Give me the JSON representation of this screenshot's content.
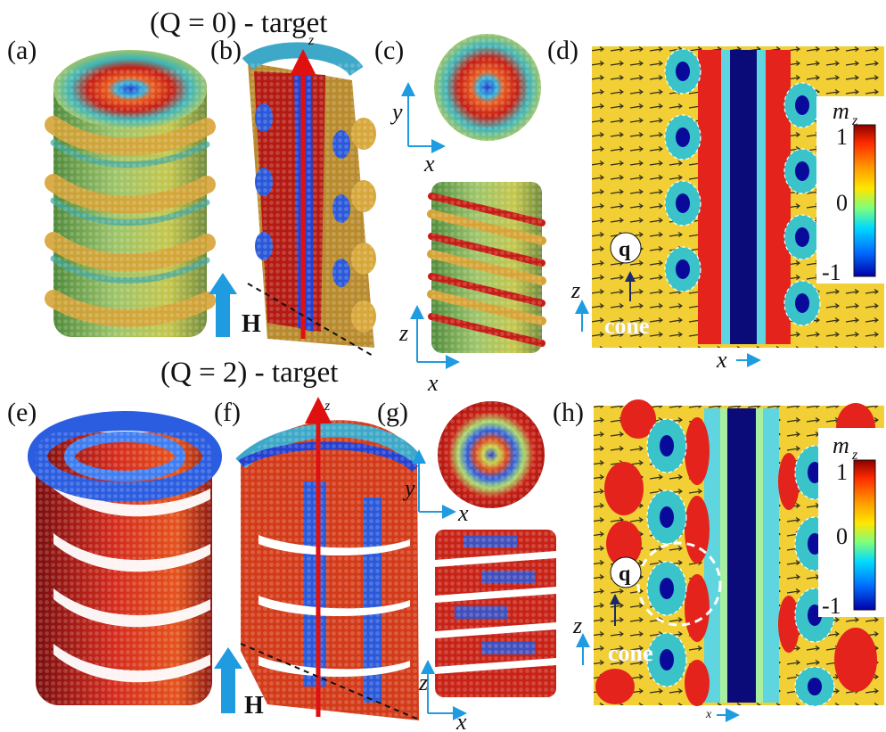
{
  "top_title": "(Q = 0) - target",
  "bottom_title": "(Q = 2) - target",
  "panel_labels": {
    "a": "(a)",
    "b": "(b)",
    "c": "(c)",
    "d": "(d)",
    "e": "(e)",
    "f": "(f)",
    "g": "(g)",
    "h": "(h)"
  },
  "axes": {
    "z": "z",
    "x": "x",
    "y": "y"
  },
  "field": {
    "label": "H"
  },
  "insets": {
    "q_label": "q",
    "cone_label": "cone"
  },
  "colorbar": {
    "label_main": "m",
    "label_sub": "z",
    "tick_max": "1",
    "tick_mid": "0",
    "tick_min": "-1",
    "colors": [
      "#8b0000",
      "#ff2a00",
      "#ff9900",
      "#ffe600",
      "#7dff7d",
      "#00d9ff",
      "#006dff",
      "#0000a8"
    ]
  },
  "colors": {
    "red": "#d81e1e",
    "orange": "#ee9a20",
    "yellow": "#f1d23a",
    "green": "#8fc96a",
    "teal": "#3ac8c2",
    "blue": "#1a3fcf",
    "navy": "#0a0a6f",
    "accent_arrow": "#1f9be0"
  }
}
